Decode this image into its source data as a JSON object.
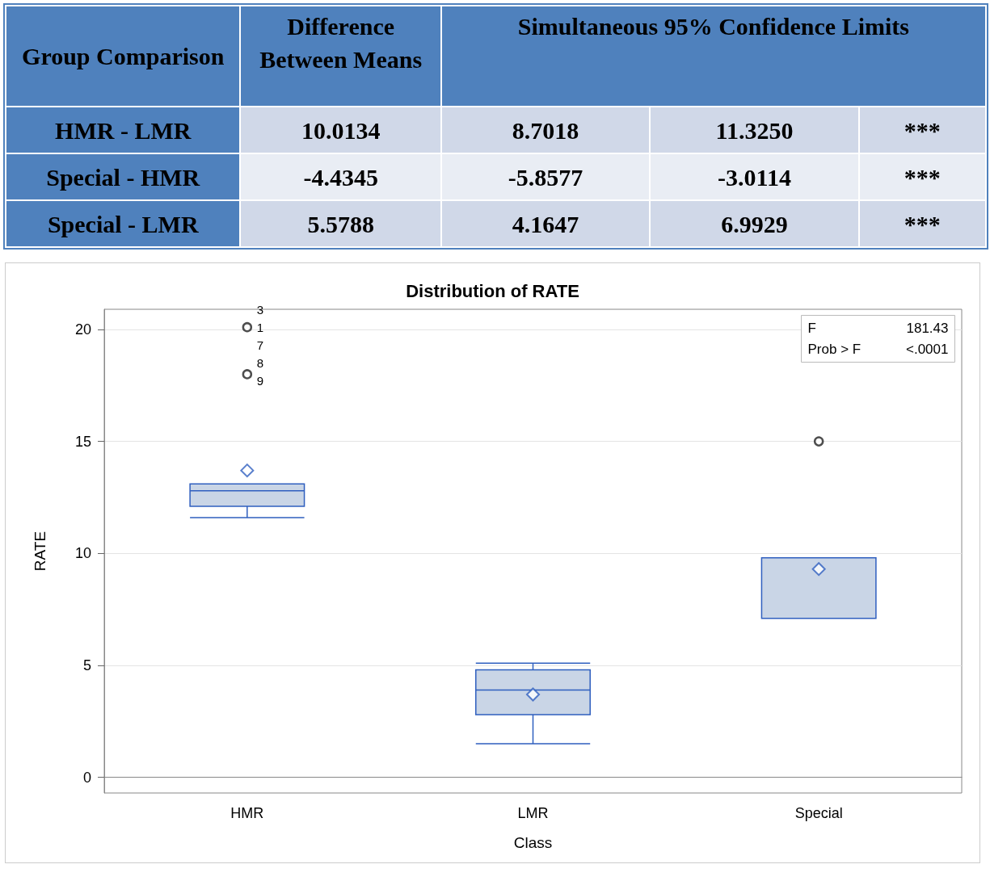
{
  "chart_data": [
    {
      "type": "other",
      "categories": [
        "Group Comparison",
        "Difference Between Means",
        "Simultaneous 95% Confidence Limits",
        null,
        null
      ],
      "y_categories": [
        "HMR - LMR",
        "Special - HMR",
        "Special - LMR"
      ],
      "cell_labels": [
        [
          "10.0134",
          "8.7018",
          "11.3250",
          "***"
        ],
        [
          "-4.4345",
          "-5.8577",
          "-3.0114",
          "***"
        ],
        [
          "5.5788",
          "4.1647",
          "6.9929",
          "***"
        ]
      ]
    },
    {
      "type": "box",
      "title": "Distribution of RATE",
      "xlabel": "Class",
      "ylabel": "RATE",
      "categories": [
        "HMR",
        "LMR",
        "Special"
      ],
      "series": [
        {
          "color": "#c9d5e6",
          "boxes": [
            {
              "low": 11.6,
              "q1": 12.1,
              "median": 12.8,
              "q3": 13.1,
              "high": 13.1,
              "mean": 13.7,
              "outliers": [
                20.1,
                18
              ]
            },
            {
              "low": 1.5,
              "q1": 2.8,
              "median": 3.9,
              "q3": 4.8,
              "high": 5.1,
              "mean": 3.7
            },
            {
              "low": 7.1,
              "q1": 7.1,
              "median": 9.8,
              "q3": 9.8,
              "high": 9.8,
              "mean": 9.3,
              "outliers": [
                15
              ]
            }
          ]
        }
      ],
      "ylim": [
        -0.7,
        20.9
      ],
      "yticks": [
        0,
        5,
        10,
        15,
        20
      ],
      "grid": "y",
      "annotations": [
        "F",
        "181.43",
        "Prob > F",
        "<.0001",
        "3",
        "1",
        "7",
        "8",
        "9"
      ]
    }
  ]
}
